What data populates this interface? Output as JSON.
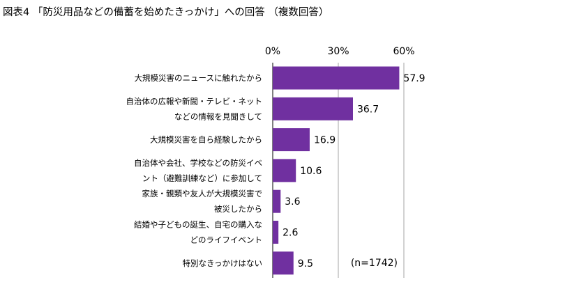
{
  "chart_data": {
    "type": "bar",
    "orientation": "horizontal",
    "title": "図表4 「防災用品などの備蓄を始めたきっかけ」への回答 （複数回答）",
    "categories": [
      [
        "大規模災害のニュースに触れたから"
      ],
      [
        "自治体の広報や新聞・テレビ・ネット",
        "などの情報を見聞きして"
      ],
      [
        "大規模災害を自ら経験したから"
      ],
      [
        "自治体や会社、学校などの防災イベ",
        "ント（避難訓練など）に参加して"
      ],
      [
        "家族・親類や友人が大規模災害で",
        "被災したから"
      ],
      [
        "結婚や子どもの誕生、自宅の購入な",
        "どのライフイベント"
      ],
      [
        "特別なきっかけはない"
      ]
    ],
    "values": [
      57.9,
      36.7,
      16.9,
      10.6,
      3.6,
      2.6,
      9.5
    ],
    "xlim": [
      0,
      60
    ],
    "xticks": [
      0,
      30,
      60
    ],
    "xtick_labels": [
      "0%",
      "30%",
      "60%"
    ],
    "xaxis_position": "top",
    "grid": true,
    "annotation": "(n=1742)",
    "bar_color": "#7030A0"
  }
}
